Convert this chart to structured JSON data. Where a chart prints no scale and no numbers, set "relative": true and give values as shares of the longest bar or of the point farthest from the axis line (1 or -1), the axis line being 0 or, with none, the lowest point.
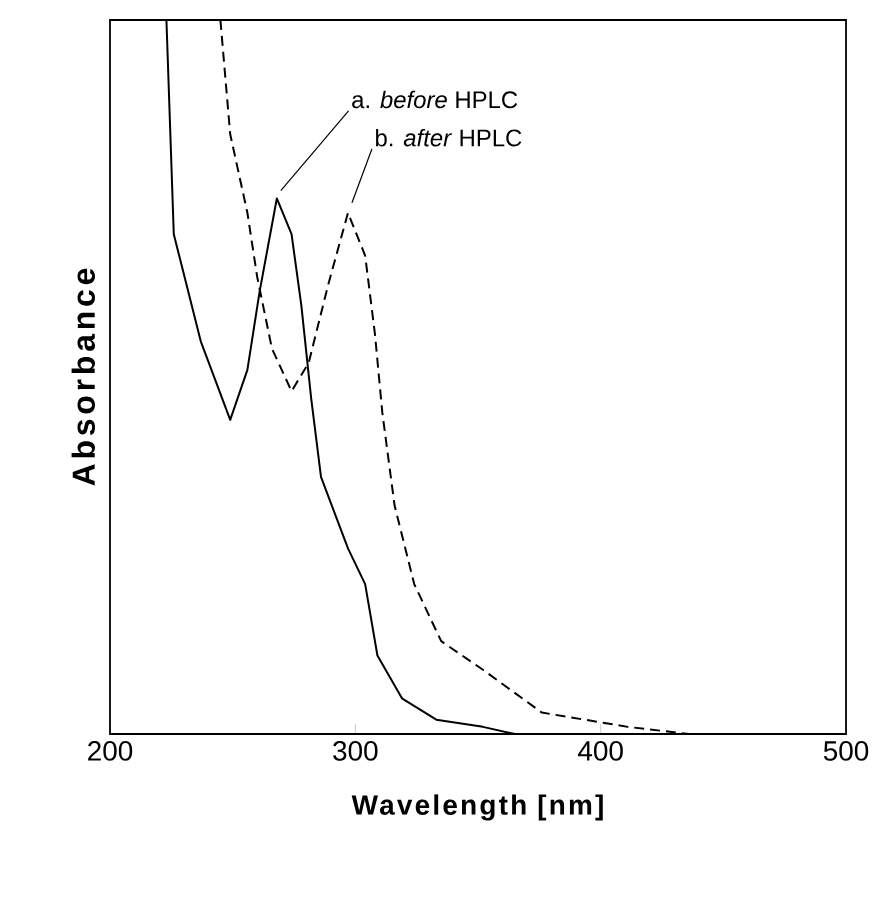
{
  "chart_data": {
    "type": "line",
    "relative": true,
    "xlabel": "Wavelength    [nm]",
    "ylabel": "Absorbance",
    "xlim": [
      200,
      500
    ],
    "xticks": [
      200,
      300,
      400,
      500
    ],
    "tick_labels": "x",
    "grid": false,
    "legend": false,
    "marker": "none",
    "series": [
      {
        "color": "#000000",
        "line_style": "solid",
        "x": [
          223,
          226,
          237,
          249,
          256,
          261,
          268,
          274,
          278,
          282,
          286,
          297,
          304,
          309,
          319,
          333,
          352,
          365
        ],
        "values": [
          1.0,
          0.7,
          0.55,
          0.44,
          0.51,
          0.62,
          0.75,
          0.7,
          0.6,
          0.47,
          0.36,
          0.26,
          0.21,
          0.11,
          0.05,
          0.02,
          0.01,
          0
        ]
      },
      {
        "color": "#000000",
        "line_style": "dashed",
        "x": [
          245,
          249,
          256,
          260,
          266,
          274,
          281,
          289,
          297,
          304,
          308,
          311,
          316,
          324,
          335,
          352,
          360,
          376,
          411,
          436
        ],
        "values": [
          1.0,
          0.84,
          0.73,
          0.64,
          0.54,
          0.48,
          0.52,
          0.63,
          0.73,
          0.67,
          0.56,
          0.45,
          0.32,
          0.21,
          0.13,
          0.09,
          0.07,
          0.03,
          0.01,
          0
        ]
      }
    ],
    "annotations": [
      {
        "text": "a. *before* HPLC",
        "x": 268,
        "y": 0.75
      },
      {
        "text": "b. *after* HPLC",
        "x": 297,
        "y": 0.73
      }
    ]
  }
}
